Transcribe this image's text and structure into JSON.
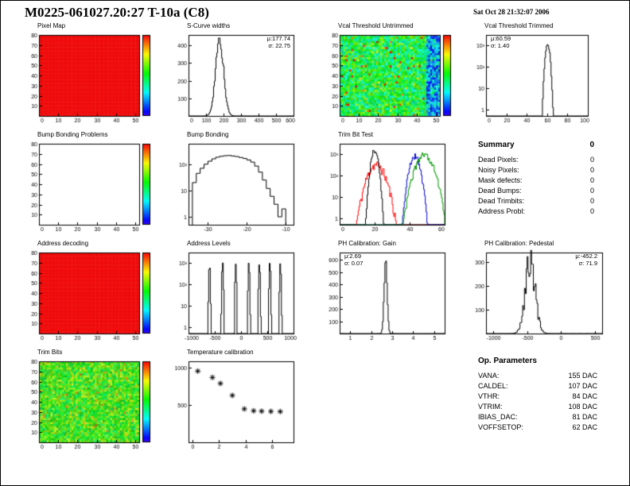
{
  "title": "M0225-061027.20:27 T-10a (C8)",
  "timestamp": "Sat Oct 28 21:32:07 2006",
  "summary": {
    "title": "Summary",
    "total": "0",
    "rows": [
      {
        "label": "Dead Pixels:",
        "value": "0"
      },
      {
        "label": "Noisy Pixels:",
        "value": "0"
      },
      {
        "label": "Mask defects:",
        "value": "0"
      },
      {
        "label": "Dead Bumps:",
        "value": "0"
      },
      {
        "label": "Dead Trimbits:",
        "value": "0"
      },
      {
        "label": "Address Probl:",
        "value": "0"
      }
    ]
  },
  "op_parameters": {
    "title": "Op. Parameters",
    "rows": [
      {
        "label": "VANA:",
        "value": "155 DAC"
      },
      {
        "label": "CALDEL:",
        "value": "107 DAC"
      },
      {
        "label": "VTHR:",
        "value": "84 DAC"
      },
      {
        "label": "VTRIM:",
        "value": "108 DAC"
      },
      {
        "label": "IBIAS_DAC:",
        "value": "81 DAC"
      },
      {
        "label": "VOFFSETOP:",
        "value": "62 DAC"
      }
    ]
  },
  "chart_data": [
    {
      "type": "heatmap",
      "title": "Pixel Map",
      "style": "solid-red",
      "fill_color": "#f20d0d",
      "colorbar": true,
      "palette": "rainbow",
      "xlim": [
        0,
        52
      ],
      "ylim": [
        0,
        80
      ],
      "xticks": [
        0,
        10,
        20,
        30,
        40,
        50
      ],
      "yticks": [
        10,
        20,
        30,
        40,
        50,
        60,
        70,
        80
      ]
    },
    {
      "type": "gauss-hist",
      "title": "S-Curve widths",
      "stats": [
        "μ:177.74",
        "σ: 22.75"
      ],
      "mu": 177.74,
      "sigma": 22.75,
      "peak": 430,
      "jitter": 0.1,
      "xlim": [
        0,
        600
      ],
      "ylim": [
        0,
        460
      ],
      "ylog": false,
      "xticks": [
        0,
        100,
        200,
        300,
        400,
        500,
        600
      ],
      "yticks": [
        100,
        200,
        300,
        400
      ]
    },
    {
      "type": "heatmap",
      "title": "Vcal Threshold Untrimmed",
      "style": "noise-thermal",
      "colorbar": true,
      "palette": "rainbow",
      "xlim": [
        0,
        52
      ],
      "ylim": [
        0,
        80
      ],
      "xticks": [
        0,
        10,
        20,
        30,
        40,
        50
      ],
      "yticks": [
        10,
        20,
        30,
        40,
        50,
        60,
        70,
        80
      ]
    },
    {
      "type": "gauss-hist",
      "title": "Vcal Threshold Trimmed",
      "stats": [
        "μ:60.59",
        "σ: 1.40"
      ],
      "mu": 60.59,
      "sigma": 1.4,
      "peak": 1180,
      "jitter": 0.15,
      "xlim": [
        0,
        100
      ],
      "ylim": [
        0.5,
        3000
      ],
      "ylog": true,
      "xticks": [
        0,
        20,
        40,
        60,
        80,
        100
      ],
      "yticks": [
        1,
        10,
        100,
        1000
      ]
    },
    {
      "type": "heatmap",
      "title": "Bump Bonding Problems",
      "style": "empty",
      "colorbar": true,
      "palette": "rainbow",
      "xlim": [
        0,
        52
      ],
      "ylim": [
        0,
        80
      ],
      "xticks": [
        0,
        10,
        20,
        30,
        40,
        50
      ],
      "yticks": [
        10,
        20,
        30,
        40,
        50,
        60,
        70,
        80
      ]
    },
    {
      "type": "step-hist",
      "title": "Bump Bonding",
      "bins_x0": -34,
      "bin_width": 1,
      "bins": [
        20,
        45,
        70,
        100,
        130,
        160,
        185,
        200,
        210,
        215,
        205,
        195,
        180,
        165,
        145,
        120,
        85,
        50,
        25,
        12,
        6,
        3,
        1,
        2
      ],
      "xlim": [
        -35,
        -8
      ],
      "ylim": [
        0.5,
        600
      ],
      "ylog": true,
      "xticks": [
        -30,
        -20,
        -10
      ],
      "yticks": [
        1,
        10,
        100
      ]
    },
    {
      "type": "multi-gauss",
      "title": "Trim Bit Test",
      "series": [
        {
          "color": "#ff0000",
          "mu": 21,
          "sigma": 3.2,
          "peak": 320,
          "jitter": 0.5
        },
        {
          "color": "#000000",
          "mu": 20,
          "sigma": 1.3,
          "peak": 1500,
          "jitter": 0.25
        },
        {
          "color": "#0000cc",
          "mu": 43,
          "sigma": 1.9,
          "peak": 800,
          "jitter": 0.35
        },
        {
          "color": "#009900",
          "mu": 48.5,
          "sigma": 3.2,
          "peak": 900,
          "jitter": 0.35
        }
      ],
      "xlim": [
        0,
        60
      ],
      "ylim": [
        0.5,
        3000
      ],
      "ylog": true,
      "xticks": [
        0,
        20,
        40,
        60
      ],
      "yticks": [
        1,
        10,
        100,
        1000
      ]
    },
    {
      "type": "heatmap",
      "title": "Address decoding",
      "style": "solid-red",
      "fill_color": "#f20d0d",
      "colorbar": true,
      "palette": "rainbow",
      "xlim": [
        0,
        52
      ],
      "ylim": [
        0,
        80
      ],
      "xticks": [
        0,
        10,
        20,
        30,
        40,
        50
      ],
      "yticks": [
        10,
        20,
        30,
        40,
        50,
        60,
        70,
        80
      ]
    },
    {
      "type": "spikes",
      "title": "Address Levels",
      "spike_sigma": 8,
      "spikes": [
        {
          "x": -600,
          "peak": 900
        },
        {
          "x": -350,
          "peak": 1100
        },
        {
          "x": -100,
          "peak": 850
        },
        {
          "x": 150,
          "peak": 1000
        },
        {
          "x": 350,
          "peak": 950
        },
        {
          "x": 550,
          "peak": 1050
        },
        {
          "x": 750,
          "peak": 900
        }
      ],
      "xlim": [
        -1000,
        1000
      ],
      "ylim": [
        0.5,
        3000
      ],
      "ylog": true,
      "xticks": [
        -1000,
        -500,
        0,
        500,
        1000
      ],
      "yticks": [
        1,
        10,
        100,
        1000
      ]
    },
    {
      "type": "gauss-hist",
      "title": "PH Calibration: Gain",
      "stats": [
        "μ:2.69",
        "σ: 0.07"
      ],
      "mu": 2.69,
      "sigma": 0.07,
      "peak": 620,
      "jitter": 0.1,
      "xlim": [
        0.5,
        5.5
      ],
      "ylim": [
        0,
        660
      ],
      "ylog": false,
      "xticks": [
        1,
        2,
        3,
        4,
        5
      ],
      "yticks": [
        100,
        200,
        300,
        400,
        500,
        600
      ]
    },
    {
      "type": "gauss-hist",
      "title": "PH Calibration: Pedestal",
      "stats": [
        "μ:-452.2",
        "σ: 71.9"
      ],
      "mu": -452.2,
      "sigma": 71.9,
      "peak": 300,
      "jitter": 0.3,
      "xlim": [
        -1100,
        600
      ],
      "ylim": [
        0,
        340
      ],
      "ylog": false,
      "xticks": [
        -1000,
        -500,
        0,
        500
      ],
      "yticks": [
        100,
        200,
        300
      ]
    },
    {
      "type": "heatmap",
      "title": "Trim Bits",
      "style": "noise-green",
      "colorbar": true,
      "palette": "rainbow",
      "xlim": [
        0,
        52
      ],
      "ylim": [
        0,
        80
      ],
      "xticks": [
        0,
        10,
        20,
        30,
        40,
        50
      ],
      "yticks": [
        10,
        20,
        30,
        40,
        50,
        60,
        70,
        80
      ]
    },
    {
      "type": "scatter",
      "title": "Temperature calibration",
      "marker": "asterisk",
      "points": [
        [
          0.4,
          950
        ],
        [
          1.5,
          865
        ],
        [
          2.1,
          785
        ],
        [
          3,
          625
        ],
        [
          3.9,
          445
        ],
        [
          4.6,
          420
        ],
        [
          5.2,
          415
        ],
        [
          5.9,
          412
        ],
        [
          6.6,
          410
        ]
      ],
      "xlim": [
        -0.3,
        7.6
      ],
      "ylim": [
        0,
        1080
      ],
      "ylog": false,
      "xticks": [
        0,
        2,
        4,
        6
      ],
      "yticks": [
        500,
        1000
      ]
    }
  ]
}
